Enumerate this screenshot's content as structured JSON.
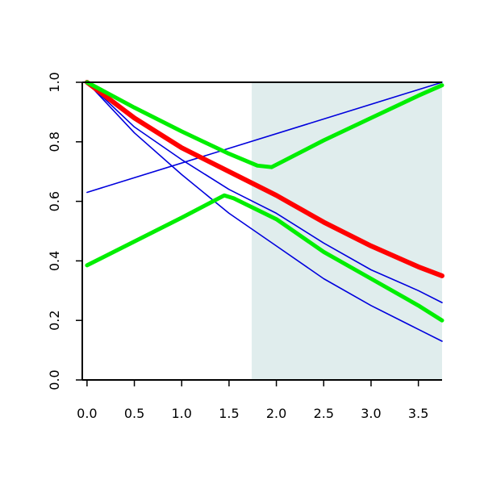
{
  "chart_data": {
    "type": "line",
    "title": "",
    "xlabel": "",
    "ylabel": "",
    "xlim": [
      -0.05,
      3.75
    ],
    "ylim": [
      0,
      1
    ],
    "x_ticks": [
      "0.0",
      "0.5",
      "1.0",
      "1.5",
      "2.0",
      "2.5",
      "3.0",
      "3.5"
    ],
    "y_ticks": [
      "0.0",
      "0.2",
      "0.4",
      "0.6",
      "0.8",
      "1.0"
    ],
    "grid": false,
    "legend": "none",
    "shaded_region": {
      "x_from": 1.74,
      "x_to": 3.75,
      "color": "#e0eded"
    },
    "series": [
      {
        "color": "#0000dd",
        "width": 1.6,
        "points": [
          [
            0.0,
            0.63
          ],
          [
            3.75,
            1.0
          ]
        ]
      },
      {
        "color": "#0000dd",
        "width": 1.6,
        "points": [
          [
            0.0,
            1.0
          ],
          [
            0.5,
            0.85
          ],
          [
            1.0,
            0.74
          ],
          [
            1.5,
            0.64
          ],
          [
            2.0,
            0.56
          ],
          [
            2.5,
            0.46
          ],
          [
            3.0,
            0.37
          ],
          [
            3.5,
            0.3
          ],
          [
            3.75,
            0.26
          ]
        ]
      },
      {
        "color": "#0000dd",
        "width": 1.6,
        "points": [
          [
            0.0,
            1.0
          ],
          [
            0.5,
            0.83
          ],
          [
            1.0,
            0.69
          ],
          [
            1.5,
            0.56
          ],
          [
            2.0,
            0.45
          ],
          [
            2.5,
            0.34
          ],
          [
            3.0,
            0.25
          ],
          [
            3.5,
            0.17
          ],
          [
            3.75,
            0.13
          ]
        ]
      },
      {
        "color": "#ff0000",
        "width": 6,
        "points": [
          [
            0.0,
            1.0
          ],
          [
            0.5,
            0.88
          ],
          [
            1.0,
            0.78
          ],
          [
            1.5,
            0.7
          ],
          [
            2.0,
            0.62
          ],
          [
            2.5,
            0.53
          ],
          [
            3.0,
            0.45
          ],
          [
            3.5,
            0.38
          ],
          [
            3.75,
            0.35
          ]
        ]
      },
      {
        "color": "#00ee00",
        "width": 5,
        "points": [
          [
            0.0,
            1.0
          ],
          [
            0.5,
            0.915
          ],
          [
            1.0,
            0.835
          ],
          [
            1.5,
            0.76
          ],
          [
            1.8,
            0.72
          ],
          [
            1.95,
            0.715
          ],
          [
            2.5,
            0.805
          ],
          [
            3.0,
            0.88
          ],
          [
            3.5,
            0.955
          ],
          [
            3.75,
            0.99
          ]
        ]
      },
      {
        "color": "#00ee00",
        "width": 5,
        "points": [
          [
            0.0,
            0.385
          ],
          [
            0.5,
            0.465
          ],
          [
            1.0,
            0.545
          ],
          [
            1.45,
            0.62
          ],
          [
            1.55,
            0.61
          ],
          [
            2.0,
            0.54
          ],
          [
            2.5,
            0.43
          ],
          [
            3.0,
            0.34
          ],
          [
            3.5,
            0.25
          ],
          [
            3.75,
            0.2
          ]
        ]
      }
    ]
  }
}
